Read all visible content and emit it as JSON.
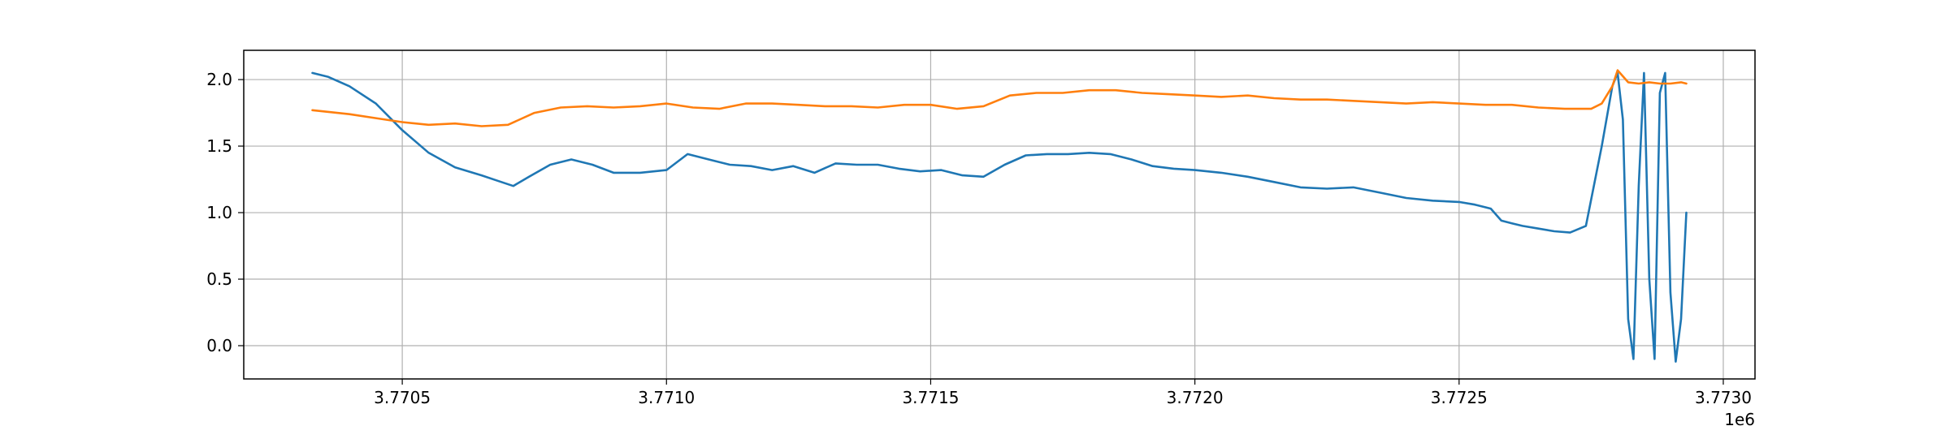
{
  "chart_data": {
    "type": "line",
    "title": "",
    "xlabel": "",
    "ylabel": "",
    "x_offset_label": "1e6",
    "xlim": [
      3.7702,
      3.77306
    ],
    "ylim": [
      -0.25,
      2.22
    ],
    "grid": true,
    "legend": "none",
    "x_ticks": [
      3.7705,
      3.771,
      3.7715,
      3.772,
      3.7725,
      3.773
    ],
    "x_tick_labels": [
      "3.7705",
      "3.7710",
      "3.7715",
      "3.7720",
      "3.7725",
      "3.7730"
    ],
    "y_ticks": [
      0.0,
      0.5,
      1.0,
      1.5,
      2.0
    ],
    "y_tick_labels": [
      "0.0",
      "0.5",
      "1.0",
      "1.5",
      "2.0"
    ],
    "series": [
      {
        "color": "#1f77b4",
        "x": [
          3.77033,
          3.77036,
          3.7704,
          3.77045,
          3.7705,
          3.77055,
          3.7706,
          3.77065,
          3.77068,
          3.77071,
          3.77074,
          3.77078,
          3.77082,
          3.77086,
          3.7709,
          3.77095,
          3.771,
          3.77104,
          3.77108,
          3.77112,
          3.77116,
          3.7712,
          3.77124,
          3.77128,
          3.77132,
          3.77136,
          3.7714,
          3.77144,
          3.77148,
          3.77152,
          3.77156,
          3.7716,
          3.77164,
          3.77168,
          3.77172,
          3.77176,
          3.7718,
          3.77184,
          3.77188,
          3.77192,
          3.77196,
          3.772,
          3.77205,
          3.7721,
          3.77215,
          3.7722,
          3.77225,
          3.7723,
          3.77235,
          3.7724,
          3.77245,
          3.7725,
          3.77253,
          3.77256,
          3.77258,
          3.7726,
          3.77262,
          3.77265,
          3.77268,
          3.77271,
          3.77274,
          3.77277,
          3.77279,
          3.7728,
          3.77281,
          3.77282,
          3.77283,
          3.77284,
          3.77285,
          3.77286,
          3.77287,
          3.77288,
          3.77289,
          3.7729,
          3.77291,
          3.77292,
          3.77293
        ],
        "values": [
          2.05,
          2.02,
          1.95,
          1.82,
          1.62,
          1.45,
          1.34,
          1.28,
          1.24,
          1.2,
          1.27,
          1.36,
          1.4,
          1.36,
          1.3,
          1.3,
          1.32,
          1.44,
          1.4,
          1.36,
          1.35,
          1.32,
          1.35,
          1.3,
          1.37,
          1.36,
          1.36,
          1.33,
          1.31,
          1.32,
          1.28,
          1.27,
          1.36,
          1.43,
          1.44,
          1.44,
          1.45,
          1.44,
          1.4,
          1.35,
          1.33,
          1.32,
          1.3,
          1.27,
          1.23,
          1.19,
          1.18,
          1.19,
          1.15,
          1.11,
          1.09,
          1.08,
          1.06,
          1.03,
          0.94,
          0.92,
          0.9,
          0.88,
          0.86,
          0.85,
          0.9,
          1.5,
          1.95,
          2.05,
          1.7,
          0.2,
          -0.1,
          1.2,
          2.05,
          0.5,
          -0.1,
          1.9,
          2.05,
          0.4,
          -0.12,
          0.2,
          1.0
        ]
      },
      {
        "color": "#ff7f0e",
        "x": [
          3.77033,
          3.7704,
          3.77045,
          3.7705,
          3.77055,
          3.7706,
          3.77065,
          3.7707,
          3.77075,
          3.7708,
          3.77085,
          3.7709,
          3.77095,
          3.771,
          3.77105,
          3.7711,
          3.77115,
          3.7712,
          3.77125,
          3.7713,
          3.77135,
          3.7714,
          3.77145,
          3.7715,
          3.77155,
          3.7716,
          3.77165,
          3.7717,
          3.77175,
          3.7718,
          3.77185,
          3.7719,
          3.77195,
          3.772,
          3.77205,
          3.7721,
          3.77215,
          3.7722,
          3.77225,
          3.7723,
          3.77235,
          3.7724,
          3.77245,
          3.7725,
          3.77255,
          3.7726,
          3.77265,
          3.7727,
          3.77275,
          3.77277,
          3.77279,
          3.7728,
          3.77282,
          3.77284,
          3.77286,
          3.77288,
          3.7729,
          3.77292,
          3.77293
        ],
        "values": [
          1.77,
          1.74,
          1.71,
          1.68,
          1.66,
          1.67,
          1.65,
          1.66,
          1.75,
          1.79,
          1.8,
          1.79,
          1.8,
          1.82,
          1.79,
          1.78,
          1.82,
          1.82,
          1.81,
          1.8,
          1.8,
          1.79,
          1.81,
          1.81,
          1.78,
          1.8,
          1.88,
          1.9,
          1.9,
          1.92,
          1.92,
          1.9,
          1.89,
          1.88,
          1.87,
          1.88,
          1.86,
          1.85,
          1.85,
          1.84,
          1.83,
          1.82,
          1.83,
          1.82,
          1.81,
          1.81,
          1.79,
          1.78,
          1.78,
          1.82,
          1.95,
          2.07,
          1.98,
          1.97,
          1.98,
          1.97,
          1.97,
          1.98,
          1.97
        ]
      }
    ]
  }
}
